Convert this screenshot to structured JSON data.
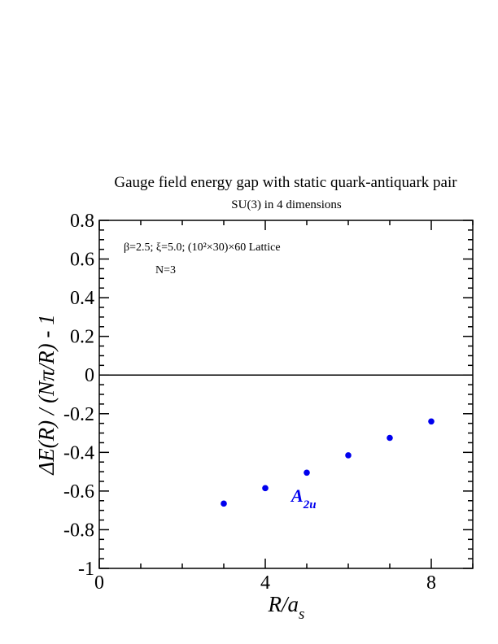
{
  "chart_data": {
    "type": "scatter",
    "title": "Gauge field energy gap with static quark-antiquark pair",
    "subtitle": "SU(3) in 4 dimensions",
    "xlabel": {
      "main": "R/a",
      "sub": "s"
    },
    "ylabel": "ΔE(R) / (Nπ/R) - 1",
    "xlim": [
      0,
      9
    ],
    "ylim": [
      -1,
      0.8
    ],
    "x_major_ticks": [
      0,
      4,
      8
    ],
    "x_tick_labels": [
      "0",
      "4",
      "8"
    ],
    "x_minor_step": 1,
    "y_major_ticks": [
      -1,
      -0.8,
      -0.6,
      -0.4,
      -0.2,
      0,
      0.2,
      0.4,
      0.6,
      0.8
    ],
    "y_tick_labels": [
      "-1",
      "-0.8",
      "-0.6",
      "-0.4",
      "-0.2",
      "0",
      "0.2",
      "0.4",
      "0.6",
      "0.8"
    ],
    "y_minor_step": 0.05,
    "reference_line_y": 0,
    "annotations": {
      "params": "β=2.5;  ξ=5.0; (10²×30)×60 Lattice",
      "n_label": "N=3"
    },
    "series": [
      {
        "name": "A2u",
        "label_main": "A",
        "label_sub": "2u",
        "color": "#0000ee",
        "x": [
          3,
          4,
          5,
          6,
          7,
          8
        ],
        "y": [
          -0.665,
          -0.585,
          -0.505,
          -0.415,
          -0.325,
          -0.24
        ]
      }
    ]
  }
}
